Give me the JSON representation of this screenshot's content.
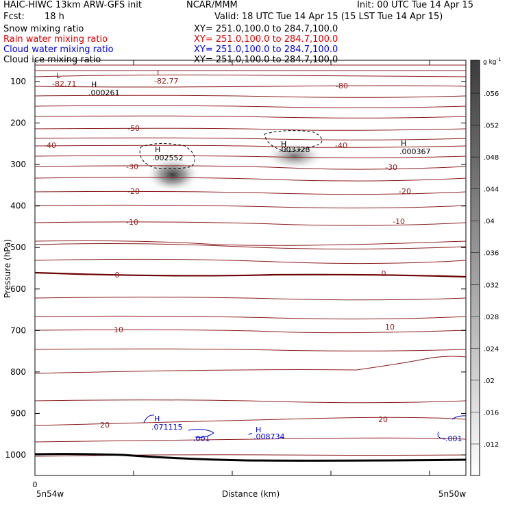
{
  "header": {
    "title": "HAIC-HIWC 13km ARW-GFS init",
    "org": "NCAR/MMM",
    "init": "Init: 00 UTC Tue 14 Apr 15",
    "fcst_label": "Fcst:",
    "fcst_value": "18 h",
    "valid": "Valid: 18 UTC Tue 14 Apr 15 (15 LST Tue 14 Apr 15)",
    "fields": [
      {
        "name": "Snow mixing ratio",
        "xy": "XY= 251.0,100.0 to 284.7,100.0",
        "color": "#000000"
      },
      {
        "name": "Rain water mixing ratio",
        "xy": "XY= 251.0,100.0 to 284.7,100.0",
        "color": "#d00000"
      },
      {
        "name": "Cloud water mixing ratio",
        "xy": "XY= 251.0,100.0 to 284.7,100.0",
        "color": "#0000d0"
      },
      {
        "name": "Cloud ice mixing ratio",
        "xy": "XY= 251.0,100.0 to 284.7,100.0",
        "color": "#000000"
      }
    ]
  },
  "chart_data": {
    "type": "heatmap",
    "ylabel": "Pressure (hPa)",
    "xlabel": "Distance (km)",
    "ylim": [
      1050,
      50
    ],
    "yticks": [
      100,
      200,
      300,
      400,
      500,
      600,
      700,
      800,
      900,
      1000
    ],
    "xticks": [
      0
    ],
    "x_start_label": "5n54w",
    "x_end_label": "5n50w",
    "colorbar": {
      "unit": "g kg",
      "unit_exp": "-1",
      "ticks": [
        ".012",
        ".016",
        ".02",
        ".024",
        ".028",
        ".032",
        ".036",
        ".04",
        ".044",
        ".048",
        ".052",
        ".056"
      ]
    },
    "isotherm_labels": [
      "-50",
      "-40",
      "-40",
      "-30",
      "-30",
      "-20",
      "-20",
      "-10",
      "-10",
      "0",
      "0",
      "10",
      "10",
      "20",
      "20"
    ],
    "extrema_labels": [
      {
        "type": "L",
        "value": "-82.71",
        "color": "#8b1a1a"
      },
      {
        "type": "L",
        "value": "-82.77",
        "color": "#8b1a1a"
      },
      {
        "type": "H",
        "value": ".000261",
        "color": "#000000"
      },
      {
        "type": "H",
        "value": ".002552",
        "color": "#000000"
      },
      {
        "type": "H",
        "value": ".003328",
        "color": "#000000"
      },
      {
        "type": "H",
        "value": ".000367",
        "color": "#000000"
      },
      {
        "type": "H",
        "value": ".071115",
        "color": "#0000d0"
      },
      {
        "type": "H",
        "value": ".008734",
        "color": "#0000d0"
      }
    ],
    "cloud_water_contour_labels": [
      ".001",
      ".001"
    ],
    "top_contour_label": "-80"
  }
}
